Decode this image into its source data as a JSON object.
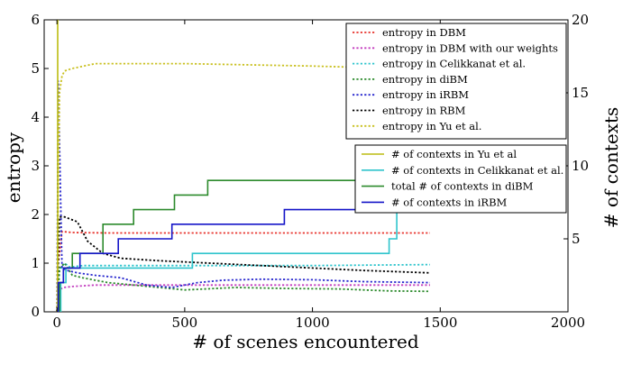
{
  "chart_data": {
    "type": "line",
    "xlabel": "# of scenes encountered",
    "ylabel": "entropy",
    "ylabel_right": "# of contexts",
    "xlim": [
      -50,
      2000
    ],
    "ylim": [
      0,
      6
    ],
    "ylim_right": [
      0,
      20
    ],
    "x_ticks": [
      0,
      500,
      1000,
      1500,
      2000
    ],
    "x_tick_labels": [
      "0",
      "500",
      "1000",
      "1500",
      "2000"
    ],
    "y_ticks": [
      0,
      1,
      2,
      3,
      4,
      5,
      6
    ],
    "y_tick_labels": [
      "0",
      "1",
      "2",
      "3",
      "4",
      "5",
      "6"
    ],
    "y_right_ticks": [
      5,
      10,
      15,
      20
    ],
    "y_right_tick_labels": [
      "5",
      "10",
      "15",
      "20"
    ],
    "grid": false,
    "legends": [
      {
        "placement": "top-right",
        "entries": [
          "entropy in DBM",
          "entropy in DBM with our weights",
          "entropy in Celikkanat et al.",
          "entropy in diBM",
          "entropy in iRBM",
          "entropy in RBM",
          "entropy in Yu et al."
        ]
      },
      {
        "placement": "center-right",
        "entries": [
          "# of contexts in Yu et al",
          "# of contexts in Celikkanat et al.",
          "total # of contexts in diBM",
          "# of contexts in iRBM"
        ]
      }
    ],
    "series": [
      {
        "name": "entropy in DBM",
        "axis": "left",
        "style": "dotted",
        "color": "#e8332d",
        "x": [
          0,
          5,
          20,
          60,
          200,
          500,
          1000,
          1460
        ],
        "y": [
          0,
          1.0,
          1.65,
          1.63,
          1.62,
          1.62,
          1.62,
          1.62
        ]
      },
      {
        "name": "entropy in DBM with our weights",
        "axis": "left",
        "style": "dotted",
        "color": "#c33fbf",
        "x": [
          0,
          8,
          25,
          60,
          150,
          300,
          500,
          800,
          1100,
          1460
        ],
        "y": [
          0,
          0.45,
          0.5,
          0.52,
          0.55,
          0.55,
          0.55,
          0.55,
          0.55,
          0.55
        ]
      },
      {
        "name": "entropy in Celikkanat et al.",
        "axis": "left",
        "style": "dotted",
        "color": "#2ec4cc",
        "x": [
          0,
          10,
          30,
          50,
          100,
          200,
          400,
          700,
          1000,
          1200,
          1460
        ],
        "y": [
          0,
          0.85,
          1.0,
          0.92,
          0.95,
          0.95,
          0.95,
          0.95,
          0.95,
          0.96,
          0.97
        ]
      },
      {
        "name": "entropy in diBM",
        "axis": "left",
        "style": "dotted",
        "color": "#2c8a2c",
        "x": [
          0,
          10,
          30,
          60,
          100,
          200,
          300,
          400,
          500,
          700,
          900,
          1100,
          1300,
          1460
        ],
        "y": [
          0,
          0.9,
          1.0,
          0.75,
          0.7,
          0.6,
          0.55,
          0.5,
          0.45,
          0.5,
          0.48,
          0.47,
          0.43,
          0.42
        ]
      },
      {
        "name": "entropy in iRBM",
        "axis": "left",
        "style": "dotted",
        "color": "#2a2acf",
        "x": [
          0,
          5,
          20,
          40,
          80,
          150,
          250,
          350,
          450,
          550,
          650,
          800,
          1000,
          1200,
          1460
        ],
        "y": [
          0,
          4.75,
          0.9,
          0.85,
          0.8,
          0.75,
          0.7,
          0.55,
          0.5,
          0.6,
          0.65,
          0.67,
          0.66,
          0.62,
          0.6
        ]
      },
      {
        "name": "entropy in RBM",
        "axis": "left",
        "style": "dotted",
        "color": "#000000",
        "x": [
          0,
          10,
          30,
          80,
          120,
          180,
          250,
          400,
          600,
          800,
          1000,
          1200,
          1460
        ],
        "y": [
          0,
          1.95,
          1.95,
          1.85,
          1.45,
          1.2,
          1.1,
          1.05,
          1.0,
          0.95,
          0.9,
          0.85,
          0.8
        ]
      },
      {
        "name": "entropy in Yu et al.",
        "axis": "left",
        "style": "dotted",
        "color": "#c9c020",
        "x": [
          0,
          10,
          20,
          30,
          60,
          150,
          300,
          500,
          800,
          1000,
          1200,
          1460
        ],
        "y": [
          0,
          4.5,
          4.85,
          4.95,
          5.0,
          5.1,
          5.1,
          5.1,
          5.07,
          5.05,
          5.02,
          5.0
        ]
      },
      {
        "name": "# of contexts in Yu et al",
        "axis": "right",
        "style": "solid",
        "color": "#bcbc10",
        "x": [
          0,
          1,
          3,
          3,
          6
        ],
        "y": [
          20,
          20,
          20,
          0,
          0
        ]
      },
      {
        "name": "# of contexts in Celikkanat et al.",
        "axis": "right",
        "style": "solid",
        "color": "#2ec4cc",
        "x": [
          0,
          15,
          15,
          35,
          35,
          530,
          530,
          1300,
          1300,
          1330,
          1330,
          1460
        ],
        "y": [
          0,
          0,
          2,
          2,
          3,
          3,
          4,
          4,
          5,
          5,
          7,
          7
        ]
      },
      {
        "name": "total # of contexts in diBM",
        "axis": "right",
        "style": "solid",
        "color": "#2c8a2c",
        "x": [
          0,
          10,
          10,
          25,
          25,
          60,
          60,
          180,
          180,
          300,
          300,
          460,
          460,
          590,
          590,
          1460
        ],
        "y": [
          0,
          0,
          2,
          2,
          3,
          3,
          4,
          4,
          6,
          6,
          7,
          7,
          8,
          8,
          9,
          9
        ]
      },
      {
        "name": "# of contexts in iRBM",
        "axis": "right",
        "style": "solid",
        "color": "#1515c8",
        "x": [
          0,
          5,
          5,
          25,
          25,
          90,
          90,
          240,
          240,
          450,
          450,
          890,
          890,
          1460
        ],
        "y": [
          0,
          0,
          2,
          2,
          3,
          3,
          4,
          4,
          5,
          5,
          6,
          6,
          7,
          7
        ]
      }
    ]
  }
}
